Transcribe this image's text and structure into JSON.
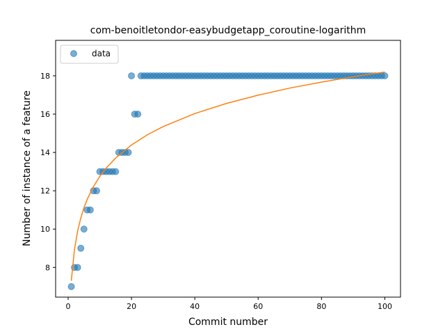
{
  "chart_data": {
    "type": "scatter",
    "title": "com-benoitletondor-easybudgetapp_coroutine-logarithm",
    "xlabel": "Commit number",
    "ylabel": "Number of instance of a feature",
    "xlim": [
      -3.95,
      104.95
    ],
    "ylim": [
      6.45,
      19.85
    ],
    "xticks": [
      0,
      20,
      40,
      60,
      80,
      100
    ],
    "yticks": [
      8,
      10,
      12,
      14,
      16,
      18
    ],
    "legend_placement": "top-left",
    "grid": false,
    "series": [
      {
        "name": "data",
        "kind": "scatter",
        "color": "#1f77b4",
        "x": [
          1,
          2,
          3,
          4,
          5,
          6,
          7,
          8,
          9,
          10,
          11,
          12,
          13,
          14,
          15,
          16,
          17,
          18,
          19,
          20,
          21,
          22,
          23,
          24,
          25,
          26,
          27,
          28,
          29,
          30,
          31,
          32,
          33,
          34,
          35,
          36,
          37,
          38,
          39,
          40,
          41,
          42,
          43,
          44,
          45,
          46,
          47,
          48,
          49,
          50,
          51,
          52,
          53,
          54,
          55,
          56,
          57,
          58,
          59,
          60,
          61,
          62,
          63,
          64,
          65,
          66,
          67,
          68,
          69,
          70,
          71,
          72,
          73,
          74,
          75,
          76,
          77,
          78,
          79,
          80,
          81,
          82,
          83,
          84,
          85,
          86,
          87,
          88,
          89,
          90,
          91,
          92,
          93,
          94,
          95,
          96,
          97,
          98,
          99,
          100
        ],
        "y": [
          7,
          8,
          8,
          9,
          10,
          11,
          11,
          12,
          12,
          13,
          13,
          13,
          13,
          13,
          13,
          14,
          14,
          14,
          14,
          18,
          16,
          16,
          18,
          18,
          18,
          18,
          18,
          18,
          18,
          18,
          18,
          18,
          18,
          18,
          18,
          18,
          18,
          18,
          18,
          18,
          18,
          18,
          18,
          18,
          18,
          18,
          18,
          18,
          18,
          18,
          18,
          18,
          18,
          18,
          18,
          18,
          18,
          18,
          18,
          18,
          18,
          18,
          18,
          18,
          18,
          18,
          18,
          18,
          18,
          18,
          18,
          18,
          18,
          18,
          18,
          18,
          18,
          18,
          18,
          18,
          18,
          18,
          18,
          18,
          18,
          18,
          18,
          18,
          18,
          18,
          18,
          18,
          18,
          18,
          18,
          18,
          18,
          18,
          18,
          18
        ]
      },
      {
        "kind": "line",
        "color": "#ff7f0e",
        "x": [
          1,
          2,
          3,
          4,
          5,
          6,
          8,
          10,
          12,
          15,
          20,
          25,
          30,
          40,
          50,
          60,
          70,
          80,
          90,
          100
        ],
        "y": [
          7.3,
          8.94,
          9.9,
          10.58,
          11.11,
          11.54,
          12.22,
          12.75,
          13.18,
          13.71,
          14.39,
          14.92,
          15.35,
          16.03,
          16.56,
          16.99,
          17.36,
          17.67,
          17.95,
          18.2
        ]
      }
    ]
  }
}
